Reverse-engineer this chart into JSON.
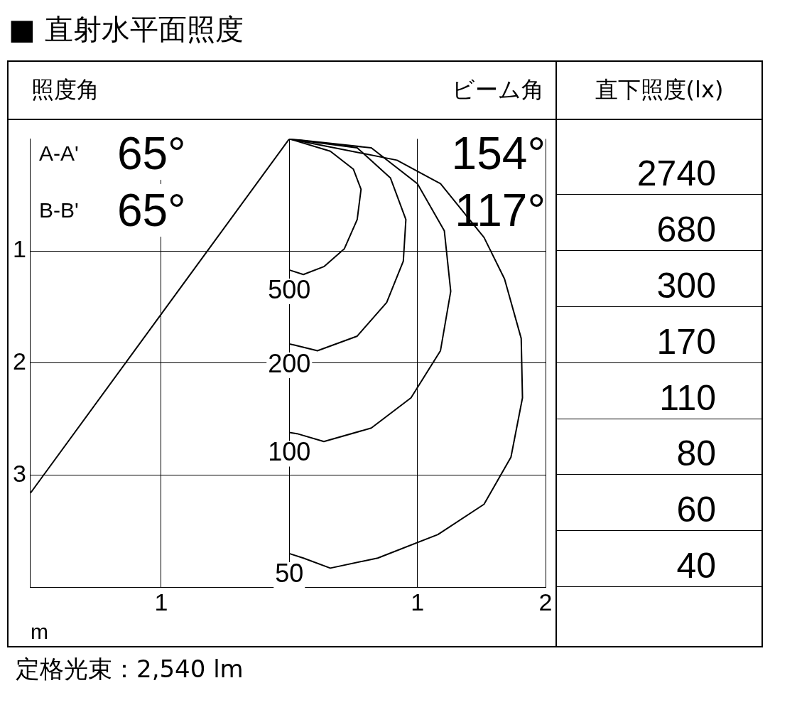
{
  "chart_data": [
    {
      "type": "line",
      "title": "■ 直射水平面照度",
      "xlabel": "m",
      "xlim": [
        -2.02,
        2
      ],
      "ylim": [
        4,
        0
      ],
      "xticks": [
        {
          "value": -1,
          "label": "1"
        },
        {
          "value": 0,
          "label": null
        },
        1,
        2
      ],
      "yticks": [
        1,
        2,
        3
      ],
      "grid": true,
      "legend": false,
      "marker": "none",
      "line_style": "solid",
      "series": [
        {
          "name": "500",
          "color": "#000000",
          "x": [
            0,
            0.32,
            0.5,
            0.56,
            0.53,
            0.43,
            0.27,
            0.11,
            0
          ],
          "values": [
            0,
            0.11,
            0.27,
            0.45,
            0.72,
            0.98,
            1.14,
            1.21,
            1.17
          ]
        },
        {
          "name": "200",
          "color": "#000000",
          "x": [
            0,
            0.53,
            0.79,
            0.91,
            0.89,
            0.76,
            0.53,
            0.22,
            0.04,
            0
          ],
          "values": [
            0,
            0.08,
            0.35,
            0.72,
            1.09,
            1.46,
            1.76,
            1.89,
            1.84,
            1.83
          ]
        },
        {
          "name": "100",
          "color": "#000000",
          "x": [
            0,
            0.64,
            1.0,
            1.21,
            1.26,
            1.18,
            0.95,
            0.64,
            0.27,
            0.06,
            0
          ],
          "values": [
            0,
            0.08,
            0.4,
            0.82,
            1.36,
            1.89,
            2.31,
            2.58,
            2.7,
            2.63,
            2.62
          ]
        },
        {
          "name": "50",
          "color": "#000000",
          "x": [
            0,
            0.84,
            1.18,
            1.52,
            1.68,
            1.81,
            1.82,
            1.73,
            1.52,
            1.16,
            0.69,
            0.32,
            0.11,
            0
          ],
          "values": [
            0,
            0.19,
            0.4,
            0.88,
            1.25,
            1.78,
            2.31,
            2.84,
            3.26,
            3.53,
            3.74,
            3.83,
            3.74,
            3.7
          ]
        },
        {
          "color": "#000000",
          "x": [
            0,
            -2.02
          ],
          "values": [
            0,
            3.16
          ]
        }
      ],
      "annotations": [
        "照度角",
        "ビーム角",
        "A-A'",
        "65°",
        "154°",
        "B-B'",
        "65°",
        "117°",
        "定格光束：2,540 lm"
      ]
    },
    {
      "type": "other",
      "title": "直下照度(lx)",
      "annotations": [
        "2740",
        "680",
        "300",
        "170",
        "110",
        "80",
        "60",
        "40"
      ]
    }
  ]
}
